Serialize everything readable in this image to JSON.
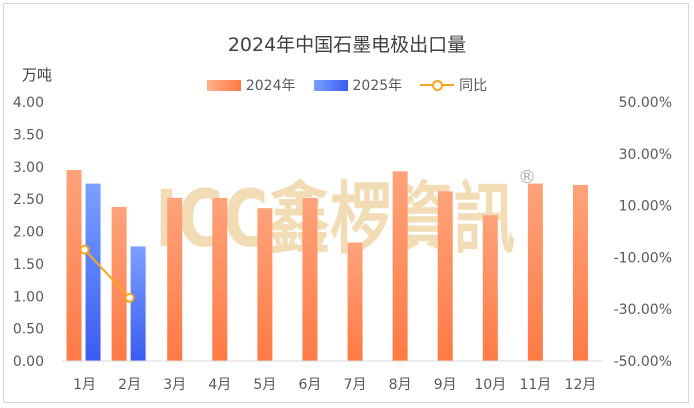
{
  "chart_data": {
    "type": "bar",
    "title": "2024年中国石墨电极出口量",
    "ylabel": "万吨",
    "categories": [
      "1月",
      "2月",
      "3月",
      "4月",
      "5月",
      "6月",
      "7月",
      "8月",
      "9月",
      "10月",
      "11月",
      "12月"
    ],
    "series": [
      {
        "name": "2024年",
        "kind": "bar",
        "axis": "left",
        "values": [
          2.95,
          2.38,
          2.52,
          2.52,
          2.36,
          2.52,
          1.83,
          2.93,
          2.62,
          2.25,
          2.74,
          2.72
        ],
        "colors": [
          "#ffb08a",
          "#ff7a45"
        ]
      },
      {
        "name": "2025年",
        "kind": "bar",
        "axis": "left",
        "values": [
          2.74,
          1.77,
          null,
          null,
          null,
          null,
          null,
          null,
          null,
          null,
          null,
          null
        ],
        "colors": [
          "#7aa0ff",
          "#3a5cf0"
        ]
      },
      {
        "name": "同比",
        "kind": "line",
        "axis": "right",
        "values": [
          -7.0,
          -25.6,
          null,
          null,
          null,
          null,
          null,
          null,
          null,
          null,
          null,
          null
        ],
        "color": "#f5a623"
      }
    ],
    "ylim": [
      0,
      4
    ],
    "yticks": [
      "0.00",
      "0.50",
      "1.00",
      "1.50",
      "2.00",
      "2.50",
      "3.00",
      "3.50",
      "4.00"
    ],
    "y2lim": [
      -50,
      50
    ],
    "y2ticks": [
      "-50.00%",
      "-30.00%",
      "-10.00%",
      "10.00%",
      "30.00%",
      "50.00%"
    ],
    "legend_position": "top-center",
    "grid": false
  },
  "watermark": {
    "text": "ICC鑫椤資訊",
    "mark": "®",
    "color": "#e8c07a"
  }
}
